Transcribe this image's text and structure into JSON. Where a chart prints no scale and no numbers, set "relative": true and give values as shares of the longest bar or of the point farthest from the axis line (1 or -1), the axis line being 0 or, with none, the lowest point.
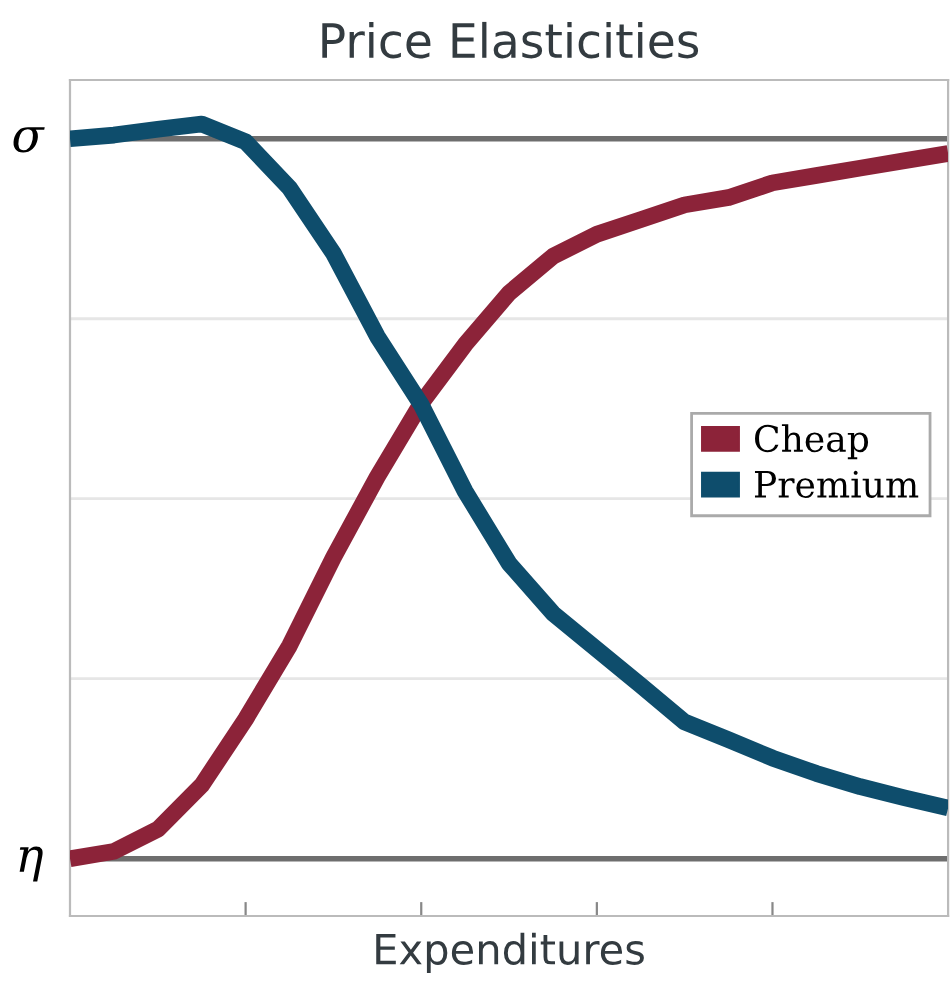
{
  "chart_data": {
    "type": "line",
    "title": "Price Elasticities",
    "xlabel": "Expenditures",
    "relative": true,
    "categories": [
      null,
      null,
      null,
      null,
      null,
      null,
      null,
      null,
      null,
      null,
      null,
      null,
      null,
      null,
      null,
      null,
      null,
      null,
      null,
      null,
      null
    ],
    "tick_labels": false,
    "grid": "y",
    "legend": "right",
    "marker": "none",
    "line_style": "solid",
    "ref_lines": [
      {
        "axis": "y",
        "value": 0,
        "label": "η",
        "color": "#6e6e6e"
      },
      {
        "axis": "y",
        "value": 0.98,
        "label": "σ",
        "color": "#6e6e6e"
      }
    ],
    "series": [
      {
        "name": "Cheap",
        "color": "#8c2339",
        "values": [
          0,
          0.01,
          0.04,
          0.1,
          0.19,
          0.29,
          0.41,
          0.52,
          0.62,
          0.7,
          0.77,
          0.82,
          0.85,
          0.87,
          0.89,
          0.9,
          0.92,
          0.93,
          0.94,
          0.95,
          0.96
        ]
      },
      {
        "name": "Premium",
        "color": "#0e4d6c",
        "values": [
          0.98,
          0.985,
          0.993,
          1.0,
          0.976,
          0.913,
          0.824,
          0.711,
          0.618,
          0.5,
          0.402,
          0.334,
          0.285,
          0.236,
          0.186,
          0.162,
          0.137,
          0.116,
          0.098,
          0.083,
          0.069
        ]
      }
    ]
  }
}
